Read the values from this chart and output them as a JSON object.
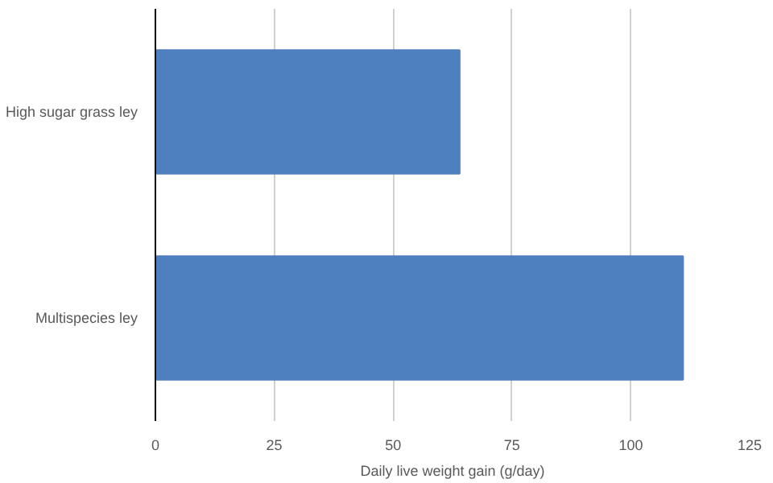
{
  "chart_data": {
    "type": "bar",
    "orientation": "horizontal",
    "xlabel": "Daily live weight gain (g/day)",
    "categories": [
      "High sugar grass ley",
      "Multispecies ley"
    ],
    "values": [
      64,
      111
    ],
    "color": "#4e7fbe",
    "xlim": [
      0,
      125
    ],
    "xticks": [
      0,
      25,
      50,
      75,
      100,
      125
    ],
    "grid": "x"
  }
}
